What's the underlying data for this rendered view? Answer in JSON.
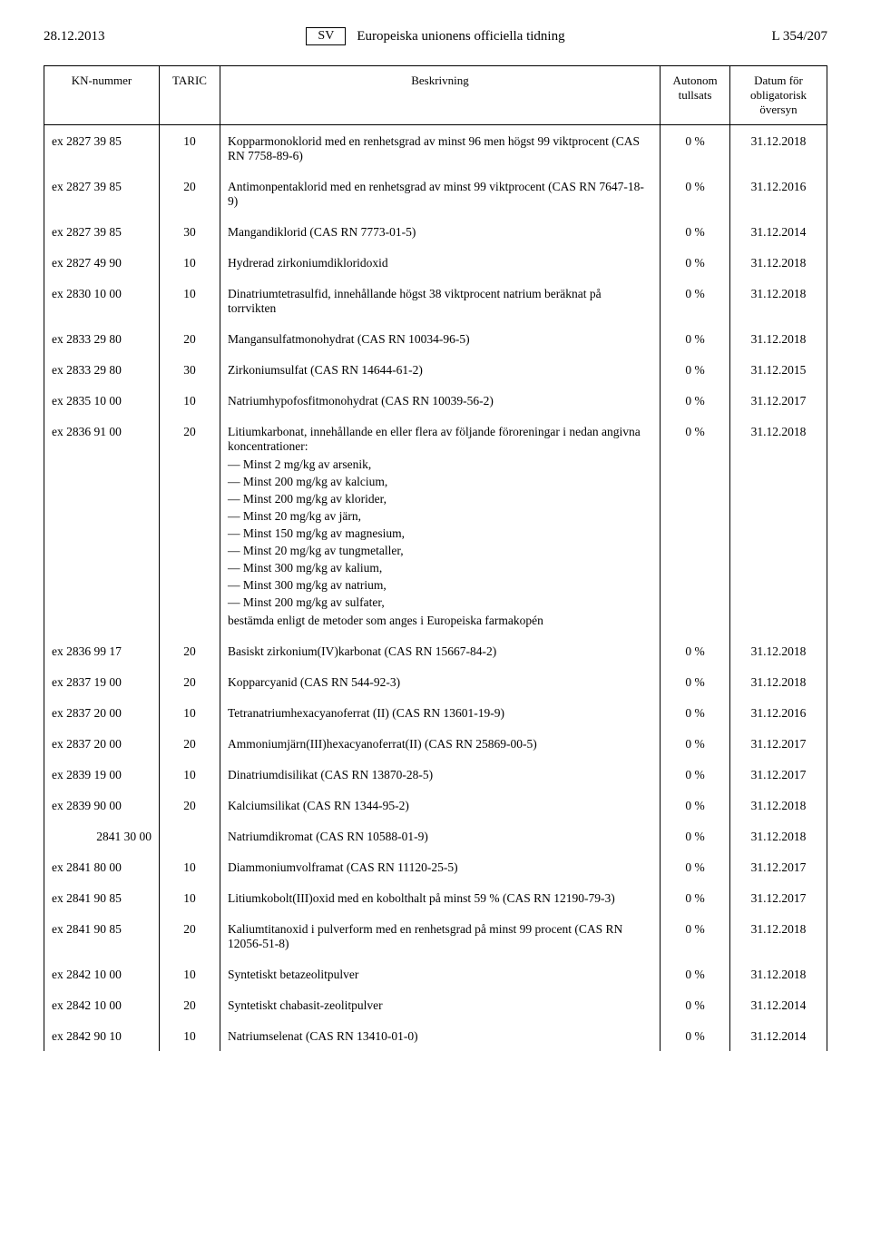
{
  "header": {
    "date": "28.12.2013",
    "lang": "SV",
    "journal": "Europeiska unionens officiella tidning",
    "page_ref": "L 354/207"
  },
  "columns": {
    "kn": "KN-nummer",
    "taric": "TARIC",
    "desc": "Beskrivning",
    "duty": "Autonom tullsats",
    "review": "Datum för obligatorisk översyn"
  },
  "rows": [
    {
      "kn": "ex 2827 39 85",
      "taric": "10",
      "desc": "Kopparmonoklorid med en renhetsgrad av minst 96 men högst 99 viktprocent (CAS RN 7758-89-6)",
      "duty": "0 %",
      "date": "31.12.2018"
    },
    {
      "kn": "ex 2827 39 85",
      "taric": "20",
      "desc": "Antimonpentaklorid med en renhetsgrad av minst 99 viktprocent (CAS RN 7647-18-9)",
      "duty": "0 %",
      "date": "31.12.2016"
    },
    {
      "kn": "ex 2827 39 85",
      "taric": "30",
      "desc": "Mangandiklorid (CAS RN 7773-01-5)",
      "duty": "0 %",
      "date": "31.12.2014"
    },
    {
      "kn": "ex 2827 49 90",
      "taric": "10",
      "desc": "Hydrerad zirkoniumdikloridoxid",
      "duty": "0 %",
      "date": "31.12.2018"
    },
    {
      "kn": "ex 2830 10 00",
      "taric": "10",
      "desc": "Dinatriumtetrasulfid, innehållande högst 38 viktprocent natrium beräknat på torrvikten",
      "duty": "0 %",
      "date": "31.12.2018"
    },
    {
      "kn": "ex 2833 29 80",
      "taric": "20",
      "desc": "Mangansulfatmonohydrat (CAS RN 10034-96-5)",
      "duty": "0 %",
      "date": "31.12.2018"
    },
    {
      "kn": "ex 2833 29 80",
      "taric": "30",
      "desc": "Zirkoniumsulfat (CAS RN 14644-61-2)",
      "duty": "0 %",
      "date": "31.12.2015"
    },
    {
      "kn": "ex 2835 10 00",
      "taric": "10",
      "desc": "Natriumhypofosfitmonohydrat (CAS RN 10039-56-2)",
      "duty": "0 %",
      "date": "31.12.2017"
    },
    {
      "kn": "ex 2836 91 00",
      "taric": "20",
      "desc": "Litiumkarbonat, innehållande en eller flera av följande föroreningar i nedan angivna koncentrationer:",
      "sub": [
        "Minst 2 mg/kg av arsenik,",
        "Minst 200 mg/kg av kalcium,",
        "Minst 200 mg/kg av klorider,",
        "Minst 20 mg/kg av järn,",
        "Minst 150 mg/kg av magnesium,",
        "Minst 20 mg/kg av tungmetaller,",
        "Minst 300 mg/kg av kalium,",
        "Minst 300 mg/kg av natrium,",
        "Minst 200 mg/kg av sulfater,"
      ],
      "tail": "bestämda enligt de metoder som anges i Europeiska farmakopén",
      "duty": "0 %",
      "date": "31.12.2018"
    },
    {
      "kn": "ex 2836 99 17",
      "taric": "20",
      "desc": "Basiskt zirkonium(IV)karbonat (CAS RN 15667-84-2)",
      "duty": "0 %",
      "date": "31.12.2018"
    },
    {
      "kn": "ex 2837 19 00",
      "taric": "20",
      "desc": "Kopparcyanid (CAS RN 544-92-3)",
      "duty": "0 %",
      "date": "31.12.2018"
    },
    {
      "kn": "ex 2837 20 00",
      "taric": "10",
      "desc": "Tetranatriumhexacyanoferrat (II) (CAS RN 13601-19-9)",
      "duty": "0 %",
      "date": "31.12.2016"
    },
    {
      "kn": "ex 2837 20 00",
      "taric": "20",
      "desc": "Ammoniumjärn(III)hexacyanoferrat(II) (CAS RN 25869-00-5)",
      "duty": "0 %",
      "date": "31.12.2017"
    },
    {
      "kn": "ex 2839 19 00",
      "taric": "10",
      "desc": "Dinatriumdisilikat (CAS RN 13870-28-5)",
      "duty": "0 %",
      "date": "31.12.2017"
    },
    {
      "kn": "ex 2839 90 00",
      "taric": "20",
      "desc": "Kalciumsilikat (CAS RN 1344-95-2)",
      "duty": "0 %",
      "date": "31.12.2018"
    },
    {
      "kn": "2841 30 00",
      "taric": "",
      "desc": "Natriumdikromat (CAS RN 10588-01-9)",
      "duty": "0 %",
      "date": "31.12.2018"
    },
    {
      "kn": "ex 2841 80 00",
      "taric": "10",
      "desc": "Diammoniumvolframat (CAS RN 11120-25-5)",
      "duty": "0 %",
      "date": "31.12.2017"
    },
    {
      "kn": "ex 2841 90 85",
      "taric": "10",
      "desc": "Litiumkobolt(III)oxid med en kobolthalt på minst 59 % (CAS RN 12190-79-3)",
      "duty": "0 %",
      "date": "31.12.2017"
    },
    {
      "kn": "ex 2841 90 85",
      "taric": "20",
      "desc": "Kaliumtitanoxid i pulverform med en renhetsgrad på minst 99 procent (CAS RN 12056-51-8)",
      "duty": "0 %",
      "date": "31.12.2018"
    },
    {
      "kn": "ex 2842 10 00",
      "taric": "10",
      "desc": "Syntetiskt betazeolitpulver",
      "duty": "0 %",
      "date": "31.12.2018"
    },
    {
      "kn": "ex 2842 10 00",
      "taric": "20",
      "desc": "Syntetiskt chabasit-zeolitpulver",
      "duty": "0 %",
      "date": "31.12.2014"
    },
    {
      "kn": "ex 2842 90 10",
      "taric": "10",
      "desc": "Natriumselenat (CAS RN 13410-01-0)",
      "duty": "0 %",
      "date": "31.12.2014"
    }
  ]
}
